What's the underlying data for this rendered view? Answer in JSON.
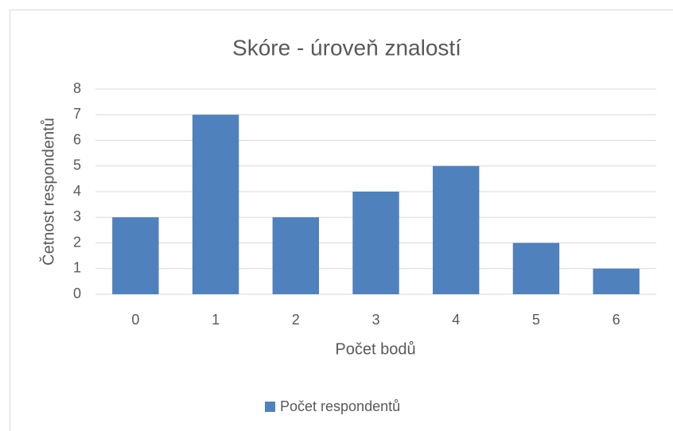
{
  "chart_data": {
    "type": "bar",
    "title": "Skóre - úroveň znalostí",
    "x_label": "Počet bodů",
    "y_label": "Četnost respondentů",
    "categories": [
      "0",
      "1",
      "2",
      "3",
      "4",
      "5",
      "6"
    ],
    "series": [
      {
        "name": "Počet respondentů",
        "color": "#4f81bd",
        "values": [
          3,
          7,
          3,
          4,
          5,
          2,
          1
        ]
      }
    ],
    "ylim": [
      0,
      8
    ],
    "yticks": [
      0,
      1,
      2,
      3,
      4,
      5,
      6,
      7,
      8
    ],
    "grid": true,
    "legend": "bottom"
  }
}
